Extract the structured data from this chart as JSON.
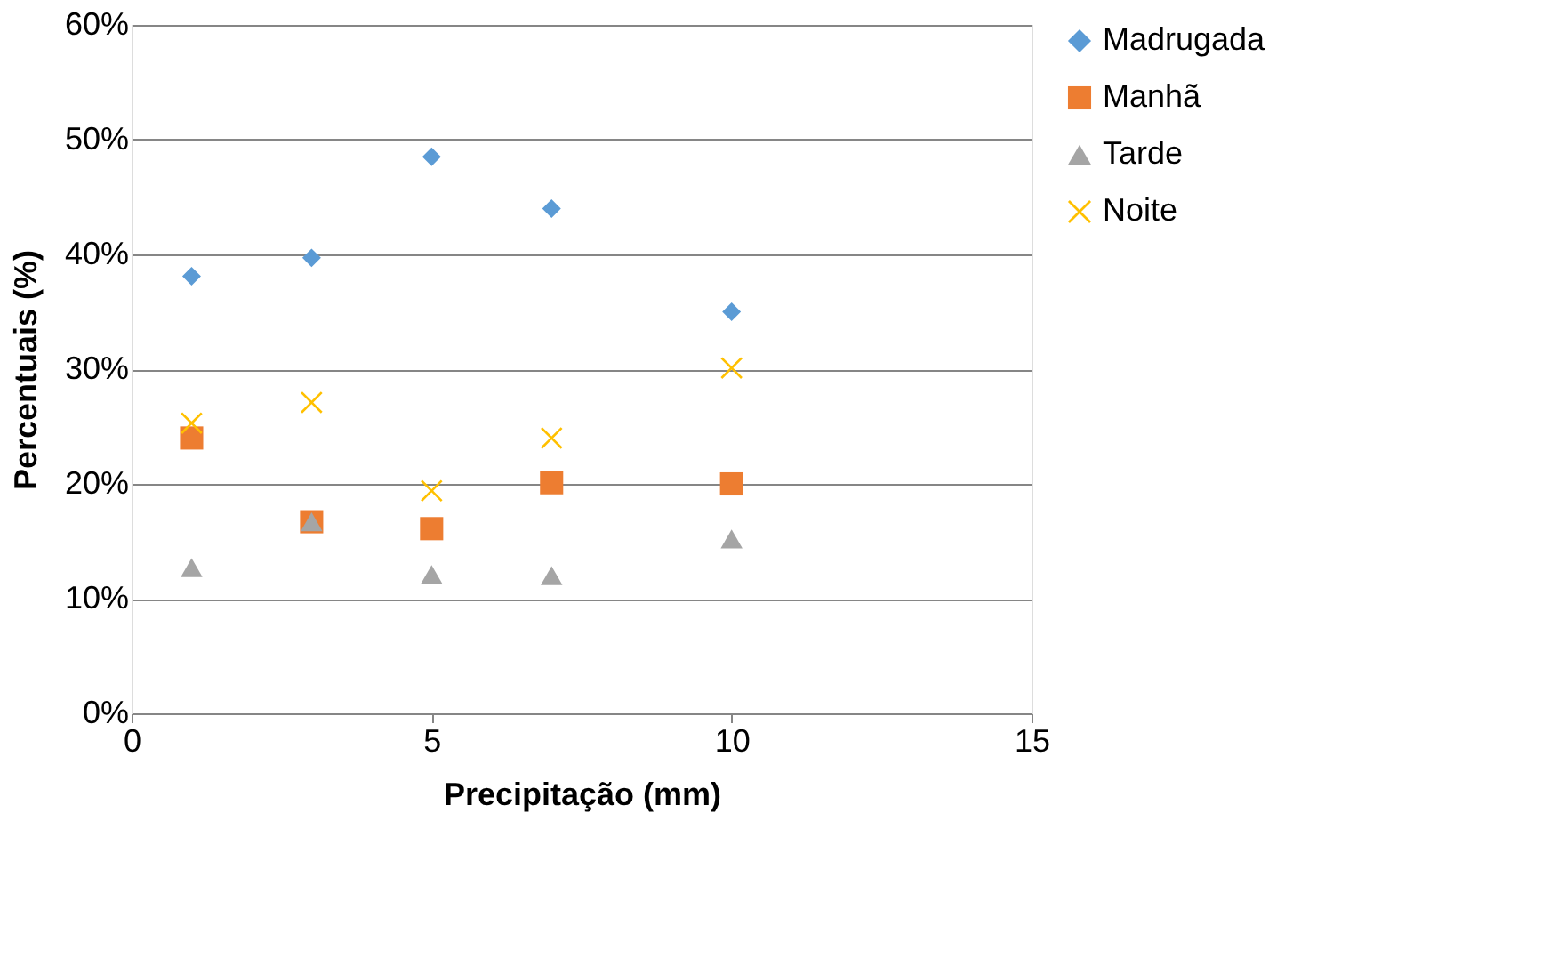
{
  "chart_data": {
    "type": "scatter",
    "xlabel": "Precipitação (mm)",
    "ylabel": "Percentuais (%)",
    "xlim": [
      0,
      15
    ],
    "xticks": [
      0,
      5,
      10,
      15
    ],
    "ylim": [
      0,
      60
    ],
    "yticks": [
      {
        "value": 0,
        "label": "0%"
      },
      {
        "value": 10,
        "label": "10%"
      },
      {
        "value": 20,
        "label": "20%"
      },
      {
        "value": 30,
        "label": "30%"
      },
      {
        "value": 40,
        "label": "40%"
      },
      {
        "value": 50,
        "label": "50%"
      },
      {
        "value": 60,
        "label": "60%"
      }
    ],
    "x": [
      1,
      3,
      5,
      7,
      10
    ],
    "grid": "y",
    "legend": "right",
    "series": [
      {
        "name": "Madrugada",
        "color": "#5b9bd5",
        "marker": "diamond",
        "values": [
          38.1,
          39.7,
          48.5,
          44.0,
          35.0
        ]
      },
      {
        "name": "Manhã",
        "color": "#ed7d31",
        "marker": "square",
        "values": [
          24.0,
          16.7,
          16.1,
          20.1,
          20.0
        ]
      },
      {
        "name": "Tarde",
        "color": "#a5a5a5",
        "marker": "triangle",
        "values": [
          12.7,
          16.7,
          12.1,
          12.0,
          15.2
        ]
      },
      {
        "name": "Noite",
        "color": "#ffc000",
        "marker": "cross",
        "values": [
          25.3,
          27.1,
          19.4,
          24.0,
          30.1
        ]
      }
    ]
  }
}
